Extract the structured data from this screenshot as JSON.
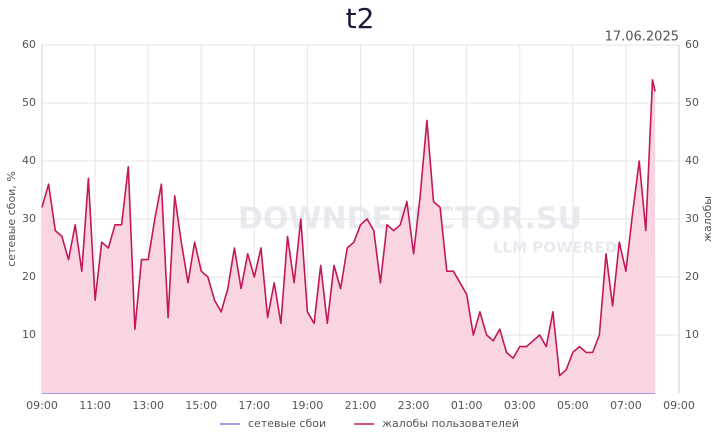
{
  "chart_data": {
    "type": "line",
    "title": "t2",
    "date": "17.06.2025",
    "watermark": "DOWNDETECTOR.SU",
    "watermark_sub": "LLM POWERED",
    "ylabel": "сетевые сбои, %",
    "y2label": "жалобы",
    "x": [
      0,
      0.25,
      0.5,
      0.75,
      1,
      1.25,
      1.5,
      1.75,
      2,
      2.25,
      2.5,
      2.75,
      3,
      3.25,
      3.5,
      3.75,
      4,
      4.25,
      4.5,
      4.75,
      5,
      5.25,
      5.5,
      5.75,
      6,
      6.25,
      6.5,
      6.75,
      7,
      7.25,
      7.5,
      7.75,
      8,
      8.25,
      8.5,
      8.75,
      9,
      9.25,
      9.5,
      9.75,
      10,
      10.25,
      10.5,
      10.75,
      11,
      11.25,
      11.5,
      11.75,
      12,
      12.25,
      12.5,
      12.75,
      13,
      13.25,
      13.5,
      13.75,
      14,
      14.25,
      14.5,
      14.75,
      15,
      15.25,
      15.5,
      15.75,
      16,
      16.25,
      16.5,
      16.75,
      17,
      17.25,
      17.5,
      17.75,
      18,
      18.25,
      18.5,
      18.75,
      19,
      19.25,
      19.5,
      19.75,
      20,
      20.25,
      20.5,
      20.75,
      21,
      21.25,
      21.5,
      21.75,
      22,
      22.25,
      22.5,
      22.75,
      23,
      23.1
    ],
    "xlim": [
      0,
      24
    ],
    "xticks": [
      {
        "value": 0,
        "label": "09:00"
      },
      {
        "value": 2,
        "label": "11:00"
      },
      {
        "value": 4,
        "label": "13:00"
      },
      {
        "value": 6,
        "label": "15:00"
      },
      {
        "value": 8,
        "label": "17:00"
      },
      {
        "value": 10,
        "label": "19:00"
      },
      {
        "value": 12,
        "label": "21:00"
      },
      {
        "value": 14,
        "label": "23:00"
      },
      {
        "value": 16,
        "label": "01:00"
      },
      {
        "value": 18,
        "label": "03:00"
      },
      {
        "value": 20,
        "label": "05:00"
      },
      {
        "value": 22,
        "label": "07:00"
      },
      {
        "value": 24,
        "label": "09:00"
      }
    ],
    "ylim": [
      0,
      60
    ],
    "yticks": [
      10,
      20,
      30,
      40,
      50,
      60
    ],
    "y2lim": [
      0,
      60
    ],
    "y2ticks": [
      10,
      20,
      30,
      40,
      50,
      60
    ],
    "grid": true,
    "series": [
      {
        "name": "сетевые сбои",
        "color": "#8c7fd8",
        "values": [
          0,
          0,
          0,
          0,
          0,
          0,
          0,
          0,
          0,
          0,
          0,
          0,
          0,
          0,
          0,
          0,
          0,
          0,
          0,
          0,
          0,
          0,
          0,
          0,
          0,
          0,
          0,
          0,
          0,
          0,
          0,
          0,
          0,
          0,
          0,
          0,
          0,
          0,
          0,
          0,
          0,
          0,
          0,
          0,
          0,
          0,
          0,
          0,
          0,
          0,
          0,
          0,
          0,
          0,
          0,
          0,
          0,
          0,
          0,
          0,
          0,
          0,
          0,
          0,
          0,
          0,
          0,
          0,
          0,
          0,
          0,
          0,
          0,
          0,
          0,
          0,
          0,
          0,
          0,
          0,
          0,
          0,
          0,
          0,
          0,
          0,
          0,
          0,
          0,
          0,
          0,
          0,
          0,
          0
        ]
      },
      {
        "name": "жалобы пользователей",
        "color": "#c2185b",
        "fill": "#f9d5e2",
        "axis": "y2",
        "values": [
          32,
          36,
          28,
          27,
          23,
          29,
          21,
          37,
          16,
          26,
          25,
          29,
          29,
          39,
          11,
          23,
          23,
          30,
          36,
          13,
          34,
          26,
          19,
          26,
          21,
          20,
          16,
          14,
          18,
          25,
          18,
          24,
          20,
          25,
          13,
          19,
          12,
          27,
          19,
          30,
          14,
          12,
          22,
          12,
          22,
          18,
          25,
          26,
          29,
          30,
          28,
          19,
          29,
          28,
          29,
          33,
          24,
          34,
          47,
          33,
          32,
          21,
          21,
          19,
          17,
          10,
          14,
          10,
          9,
          11,
          7,
          6,
          8,
          8,
          9,
          10,
          8,
          14,
          3,
          4,
          7,
          8,
          7,
          7,
          10,
          24,
          15,
          26,
          21,
          31,
          40,
          28,
          54,
          52
        ]
      }
    ]
  }
}
